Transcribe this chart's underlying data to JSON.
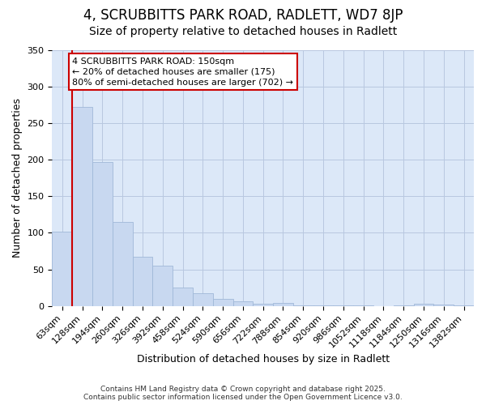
{
  "title1": "4, SCRUBBITTS PARK ROAD, RADLETT, WD7 8JP",
  "title2": "Size of property relative to detached houses in Radlett",
  "xlabel": "Distribution of detached houses by size in Radlett",
  "ylabel": "Number of detached properties",
  "bar_labels": [
    "63sqm",
    "128sqm",
    "194sqm",
    "260sqm",
    "326sqm",
    "392sqm",
    "458sqm",
    "524sqm",
    "590sqm",
    "656sqm",
    "722sqm",
    "788sqm",
    "854sqm",
    "920sqm",
    "986sqm",
    "1052sqm",
    "1118sqm",
    "1184sqm",
    "1250sqm",
    "1316sqm",
    "1382sqm"
  ],
  "bar_heights": [
    102,
    272,
    197,
    115,
    67,
    55,
    25,
    18,
    10,
    7,
    3,
    4,
    1,
    1,
    1,
    1,
    0,
    1,
    3,
    2,
    1
  ],
  "bar_color": "#c8d8f0",
  "bar_edge_color": "#a0b8d8",
  "vline_color": "#cc0000",
  "ylim": [
    0,
    350
  ],
  "yticks": [
    0,
    50,
    100,
    150,
    200,
    250,
    300,
    350
  ],
  "annotation_text": "4 SCRUBBITTS PARK ROAD: 150sqm\n← 20% of detached houses are smaller (175)\n80% of semi-detached houses are larger (702) →",
  "annotation_box_color": "#ffffff",
  "annotation_box_edge": "#cc0000",
  "figure_bg": "#ffffff",
  "axes_bg": "#dce8f8",
  "grid_color": "#b8c8e0",
  "footer": "Contains HM Land Registry data © Crown copyright and database right 2025.\nContains public sector information licensed under the Open Government Licence v3.0.",
  "title1_fontsize": 12,
  "title2_fontsize": 10,
  "xlabel_fontsize": 9,
  "ylabel_fontsize": 9,
  "tick_fontsize": 8,
  "annot_fontsize": 8
}
